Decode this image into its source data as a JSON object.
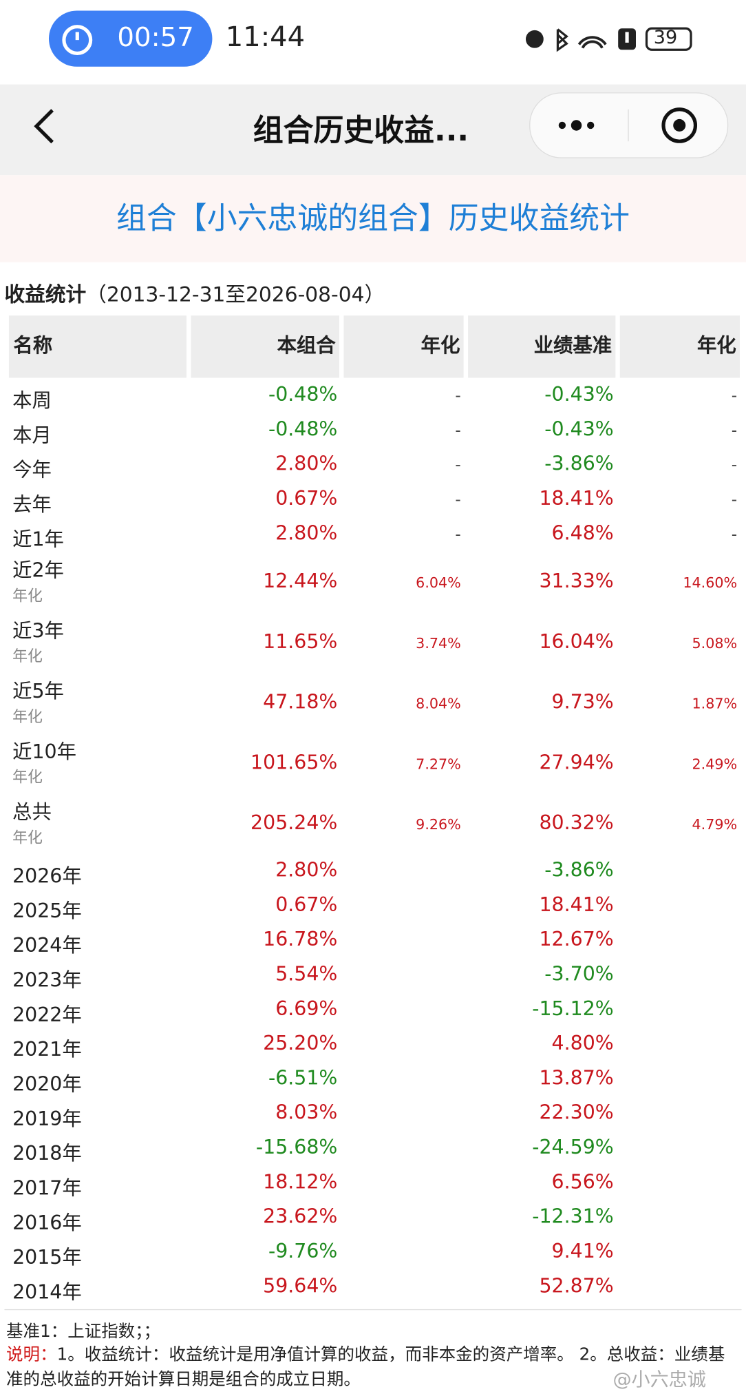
{
  "status_bar": {
    "timer": "00:57",
    "time": "11:44",
    "battery": "39"
  },
  "nav": {
    "title": "组合历史收益..."
  },
  "banner": {
    "title": "组合【小六忠诚的组合】历史收益统计"
  },
  "section": {
    "label": "收益统计",
    "range": "（2013-12-31至2026-08-04）"
  },
  "table": {
    "columns": [
      "名称",
      "本组合",
      "年化",
      "业绩基准",
      "年化"
    ],
    "rows": [
      {
        "name": "本周",
        "cells": [
          "-0.48%",
          "-",
          "-0.43%",
          "-"
        ]
      },
      {
        "name": "本月",
        "cells": [
          "-0.48%",
          "-",
          "-0.43%",
          "-"
        ]
      },
      {
        "name": "今年",
        "cells": [
          "2.80%",
          "-",
          "-3.86%",
          "-"
        ]
      },
      {
        "name": "去年",
        "cells": [
          "0.67%",
          "-",
          "18.41%",
          "-"
        ]
      },
      {
        "name": "近1年",
        "cells": [
          "2.80%",
          "-",
          "6.48%",
          "-"
        ]
      },
      {
        "name": "近2年",
        "note": "年化",
        "cells": [
          "12.44%",
          "6.04%",
          "31.33%",
          "14.60%"
        ]
      },
      {
        "name": "近3年",
        "note": "年化",
        "cells": [
          "11.65%",
          "3.74%",
          "16.04%",
          "5.08%"
        ]
      },
      {
        "name": "近5年",
        "note": "年化",
        "cells": [
          "47.18%",
          "8.04%",
          "9.73%",
          "1.87%"
        ]
      },
      {
        "name": "近10年",
        "note": "年化",
        "cells": [
          "101.65%",
          "7.27%",
          "27.94%",
          "2.49%"
        ]
      },
      {
        "name": "总共",
        "note": "年化",
        "cells": [
          "205.24%",
          "9.26%",
          "80.32%",
          "4.79%"
        ]
      },
      {
        "name": "2026年",
        "cells": [
          "2.80%",
          "",
          "-3.86%",
          ""
        ]
      },
      {
        "name": "2025年",
        "cells": [
          "0.67%",
          "",
          "18.41%",
          ""
        ]
      },
      {
        "name": "2024年",
        "cells": [
          "16.78%",
          "",
          "12.67%",
          ""
        ]
      },
      {
        "name": "2023年",
        "cells": [
          "5.54%",
          "",
          "-3.70%",
          ""
        ]
      },
      {
        "name": "2022年",
        "cells": [
          "6.69%",
          "",
          "-15.12%",
          ""
        ]
      },
      {
        "name": "2021年",
        "cells": [
          "25.20%",
          "",
          "4.80%",
          ""
        ]
      },
      {
        "name": "2020年",
        "cells": [
          "-6.51%",
          "",
          "13.87%",
          ""
        ]
      },
      {
        "name": "2019年",
        "cells": [
          "8.03%",
          "",
          "22.30%",
          ""
        ]
      },
      {
        "name": "2018年",
        "cells": [
          "-15.68%",
          "",
          "-24.59%",
          ""
        ]
      },
      {
        "name": "2017年",
        "cells": [
          "18.12%",
          "",
          "6.56%",
          ""
        ]
      },
      {
        "name": "2016年",
        "cells": [
          "23.62%",
          "",
          "-12.31%",
          ""
        ]
      },
      {
        "name": "2015年",
        "cells": [
          "-9.76%",
          "",
          "9.41%",
          ""
        ]
      },
      {
        "name": "2014年",
        "cells": [
          "59.64%",
          "",
          "52.87%",
          ""
        ]
      }
    ]
  },
  "footer": {
    "benchmark": "基准1：上证指数；；",
    "note_label": "说明：",
    "note": "1。收益统计：收益统计是用净值计算的收益，而非本金的资产增率。 2。总收益：业绩基准的总收益的开始计算日期是组合的成立日期。"
  },
  "watermark": "@小六忠诚"
}
